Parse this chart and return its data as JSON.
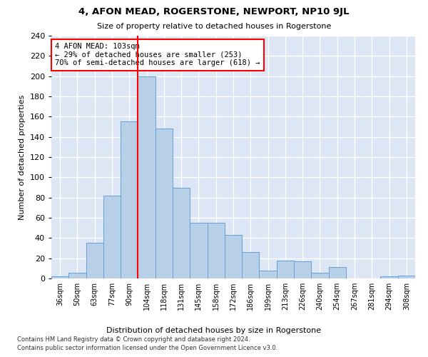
{
  "title": "4, AFON MEAD, ROGERSTONE, NEWPORT, NP10 9JL",
  "subtitle": "Size of property relative to detached houses in Rogerstone",
  "xlabel": "Distribution of detached houses by size in Rogerstone",
  "ylabel": "Number of detached properties",
  "categories": [
    "36sqm",
    "50sqm",
    "63sqm",
    "77sqm",
    "90sqm",
    "104sqm",
    "118sqm",
    "131sqm",
    "145sqm",
    "158sqm",
    "172sqm",
    "186sqm",
    "199sqm",
    "213sqm",
    "226sqm",
    "240sqm",
    "254sqm",
    "267sqm",
    "281sqm",
    "294sqm",
    "308sqm"
  ],
  "values": [
    2,
    6,
    35,
    82,
    155,
    200,
    148,
    90,
    55,
    55,
    43,
    26,
    8,
    18,
    17,
    6,
    11,
    0,
    0,
    2,
    3
  ],
  "bar_color": "#b8cfe8",
  "bar_edge_color": "#6a9fd8",
  "vline_index": 5,
  "vline_color": "red",
  "annotation_text": "4 AFON MEAD: 103sqm\n← 29% of detached houses are smaller (253)\n70% of semi-detached houses are larger (618) →",
  "annotation_box_color": "white",
  "annotation_box_edge_color": "red",
  "ylim": [
    0,
    240
  ],
  "background_color": "#dce6f5",
  "grid_color": "white",
  "footer1": "Contains HM Land Registry data © Crown copyright and database right 2024.",
  "footer2": "Contains public sector information licensed under the Open Government Licence v3.0."
}
